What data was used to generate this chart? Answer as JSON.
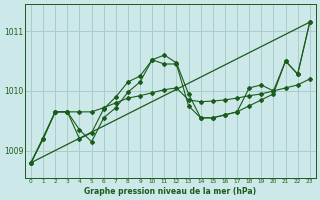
{
  "background_color": "#cce8e8",
  "grid_color": "#aacccc",
  "line_color1": "#1a5c1a",
  "line_color2": "#1a5c1a",
  "line_color3": "#1a5c1a",
  "xlabel": "Graphe pression niveau de la mer (hPa)",
  "ylim": [
    1008.55,
    1011.45
  ],
  "xlim": [
    -0.5,
    23.5
  ],
  "yticks": [
    1009,
    1010,
    1011
  ],
  "xticks": [
    0,
    1,
    2,
    3,
    4,
    5,
    6,
    7,
    8,
    9,
    10,
    11,
    12,
    13,
    14,
    15,
    16,
    17,
    18,
    19,
    20,
    21,
    22,
    23
  ],
  "series1_x": [
    0,
    1,
    2,
    3,
    4,
    5,
    6,
    7,
    8,
    9,
    10,
    11,
    12,
    13,
    14,
    15,
    16,
    17,
    18,
    19,
    20,
    21,
    22,
    23
  ],
  "series1_y": [
    1008.8,
    1009.2,
    1009.65,
    1009.65,
    1009.65,
    1009.65,
    1009.72,
    1009.8,
    1009.88,
    1009.92,
    1009.97,
    1010.02,
    1010.05,
    1009.85,
    1009.82,
    1009.83,
    1009.85,
    1009.88,
    1009.92,
    1009.95,
    1010.0,
    1010.05,
    1010.1,
    1010.2
  ],
  "series2_x": [
    0,
    2,
    3,
    4,
    5,
    6,
    7,
    8,
    9,
    10,
    11,
    12,
    13,
    14,
    15,
    16,
    17,
    18,
    19,
    20,
    21,
    22,
    23
  ],
  "series2_y": [
    1008.8,
    1009.65,
    1009.65,
    1009.2,
    1009.3,
    1009.7,
    1009.9,
    1010.15,
    1010.25,
    1010.52,
    1010.6,
    1010.47,
    1009.95,
    1009.55,
    1009.55,
    1009.6,
    1009.65,
    1009.75,
    1009.85,
    1009.95,
    1010.5,
    1010.28,
    1011.15
  ],
  "series3_x": [
    0,
    1,
    2,
    3,
    4,
    5,
    6,
    7,
    8,
    9,
    10,
    11,
    12,
    13,
    14,
    15,
    16,
    17,
    18,
    19,
    20,
    21,
    22,
    23
  ],
  "series3_y": [
    1008.8,
    1009.2,
    1009.65,
    1009.65,
    1009.35,
    1009.15,
    1009.55,
    1009.72,
    1009.98,
    1010.15,
    1010.52,
    1010.45,
    1010.45,
    1009.75,
    1009.55,
    1009.55,
    1009.6,
    1009.65,
    1010.05,
    1010.1,
    1010.0,
    1010.5,
    1010.28,
    1011.15
  ],
  "series4_x": [
    0,
    23
  ],
  "series4_y": [
    1008.8,
    1011.15
  ]
}
